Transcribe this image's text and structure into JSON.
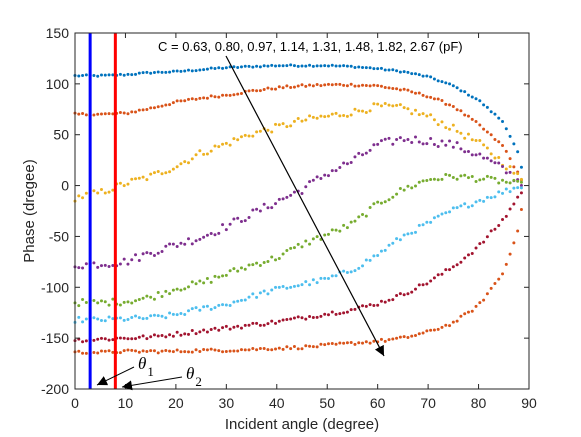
{
  "chart_data": {
    "type": "scatter",
    "title": "",
    "xlabel": "Incident angle (degree)",
    "ylabel": "Phase (dregee)",
    "xlim": [
      0,
      90
    ],
    "ylim": [
      -200,
      150
    ],
    "x_ticks": [
      0,
      10,
      20,
      30,
      40,
      50,
      60,
      70,
      80,
      90
    ],
    "y_ticks": [
      -200,
      -150,
      -100,
      -50,
      0,
      50,
      100,
      150
    ],
    "grid": false,
    "legend": "none",
    "annotation_text": "C = 0.63, 0.80, 0.97, 1.14, 1.31, 1.48, 1.82, 2.67 (pF)",
    "theta1": {
      "base": "θ",
      "sub": "1",
      "x_value": 3,
      "color": "#0000ff"
    },
    "theta2": {
      "base": "θ",
      "sub": "2",
      "x_value": 8,
      "color": "#ff0000"
    },
    "series": [
      {
        "color": "#0072bd",
        "points": [
          [
            0,
            108
          ],
          [
            5,
            108
          ],
          [
            10,
            109
          ],
          [
            15,
            111
          ],
          [
            20,
            112
          ],
          [
            25,
            114
          ],
          [
            30,
            116
          ],
          [
            35,
            117
          ],
          [
            40,
            118
          ],
          [
            45,
            118
          ],
          [
            50,
            118
          ],
          [
            55,
            117
          ],
          [
            60,
            115
          ],
          [
            65,
            112
          ],
          [
            70,
            107
          ],
          [
            75,
            98
          ],
          [
            80,
            84
          ],
          [
            85,
            62
          ],
          [
            88,
            30
          ],
          [
            89,
            5
          ]
        ]
      },
      {
        "color": "#d95319",
        "points": [
          [
            0,
            70
          ],
          [
            5,
            70
          ],
          [
            10,
            71
          ],
          [
            15,
            76
          ],
          [
            20,
            82
          ],
          [
            25,
            86
          ],
          [
            30,
            89
          ],
          [
            35,
            93
          ],
          [
            40,
            96
          ],
          [
            45,
            98
          ],
          [
            50,
            99
          ],
          [
            55,
            99
          ],
          [
            60,
            98
          ],
          [
            65,
            94
          ],
          [
            70,
            88
          ],
          [
            75,
            78
          ],
          [
            80,
            60
          ],
          [
            85,
            38
          ],
          [
            88,
            10
          ],
          [
            89,
            0
          ]
        ]
      },
      {
        "color": "#edb120",
        "points": [
          [
            0,
            -12
          ],
          [
            5,
            -7
          ],
          [
            10,
            2
          ],
          [
            15,
            9
          ],
          [
            20,
            19
          ],
          [
            25,
            32
          ],
          [
            30,
            41
          ],
          [
            35,
            51
          ],
          [
            40,
            57
          ],
          [
            45,
            64
          ],
          [
            50,
            68
          ],
          [
            55,
            72
          ],
          [
            60,
            78
          ],
          [
            65,
            76
          ],
          [
            70,
            68
          ],
          [
            75,
            56
          ],
          [
            80,
            42
          ],
          [
            85,
            22
          ],
          [
            88,
            8
          ],
          [
            89,
            2
          ]
        ]
      },
      {
        "color": "#7e2f8e",
        "points": [
          [
            0,
            -78
          ],
          [
            5,
            -77
          ],
          [
            10,
            -75
          ],
          [
            15,
            -66
          ],
          [
            20,
            -58
          ],
          [
            25,
            -51
          ],
          [
            30,
            -40
          ],
          [
            35,
            -28
          ],
          [
            40,
            -16
          ],
          [
            45,
            -4
          ],
          [
            50,
            12
          ],
          [
            55,
            24
          ],
          [
            60,
            40
          ],
          [
            65,
            46
          ],
          [
            70,
            44
          ],
          [
            75,
            40
          ],
          [
            80,
            30
          ],
          [
            85,
            16
          ],
          [
            88,
            4
          ],
          [
            89,
            0
          ]
        ]
      },
      {
        "color": "#77ac30",
        "points": [
          [
            0,
            -115
          ],
          [
            5,
            -115
          ],
          [
            10,
            -114
          ],
          [
            15,
            -110
          ],
          [
            20,
            -101
          ],
          [
            25,
            -96
          ],
          [
            30,
            -87
          ],
          [
            35,
            -78
          ],
          [
            40,
            -71
          ],
          [
            45,
            -58
          ],
          [
            50,
            -48
          ],
          [
            55,
            -38
          ],
          [
            60,
            -18
          ],
          [
            65,
            -4
          ],
          [
            70,
            6
          ],
          [
            75,
            9
          ],
          [
            80,
            7
          ],
          [
            85,
            4
          ],
          [
            88,
            1
          ],
          [
            89,
            0
          ]
        ]
      },
      {
        "color": "#4dbeee",
        "points": [
          [
            0,
            -132
          ],
          [
            5,
            -132
          ],
          [
            10,
            -131
          ],
          [
            15,
            -130
          ],
          [
            20,
            -127
          ],
          [
            25,
            -121
          ],
          [
            30,
            -117
          ],
          [
            35,
            -109
          ],
          [
            40,
            -102
          ],
          [
            45,
            -97
          ],
          [
            50,
            -92
          ],
          [
            55,
            -83
          ],
          [
            60,
            -68
          ],
          [
            65,
            -50
          ],
          [
            70,
            -37
          ],
          [
            75,
            -24
          ],
          [
            80,
            -15
          ],
          [
            85,
            -6
          ],
          [
            88,
            -1
          ],
          [
            89,
            0
          ]
        ]
      },
      {
        "color": "#a2142f",
        "points": [
          [
            0,
            -152
          ],
          [
            5,
            -151
          ],
          [
            10,
            -150
          ],
          [
            15,
            -149
          ],
          [
            20,
            -146
          ],
          [
            25,
            -143
          ],
          [
            30,
            -140
          ],
          [
            35,
            -137
          ],
          [
            40,
            -134
          ],
          [
            45,
            -130
          ],
          [
            50,
            -126
          ],
          [
            55,
            -122
          ],
          [
            60,
            -116
          ],
          [
            65,
            -107
          ],
          [
            70,
            -95
          ],
          [
            75,
            -80
          ],
          [
            80,
            -60
          ],
          [
            85,
            -33
          ],
          [
            88,
            -10
          ],
          [
            89,
            -2
          ]
        ]
      },
      {
        "color": "#d95319",
        "points": [
          [
            0,
            -164
          ],
          [
            5,
            -164
          ],
          [
            10,
            -163
          ],
          [
            15,
            -163
          ],
          [
            20,
            -163
          ],
          [
            25,
            -162
          ],
          [
            30,
            -162
          ],
          [
            35,
            -161
          ],
          [
            40,
            -160
          ],
          [
            45,
            -159
          ],
          [
            50,
            -157
          ],
          [
            55,
            -155
          ],
          [
            60,
            -153
          ],
          [
            65,
            -150
          ],
          [
            70,
            -144
          ],
          [
            75,
            -135
          ],
          [
            80,
            -118
          ],
          [
            85,
            -85
          ],
          [
            88,
            -40
          ],
          [
            89,
            -10
          ]
        ]
      }
    ]
  }
}
